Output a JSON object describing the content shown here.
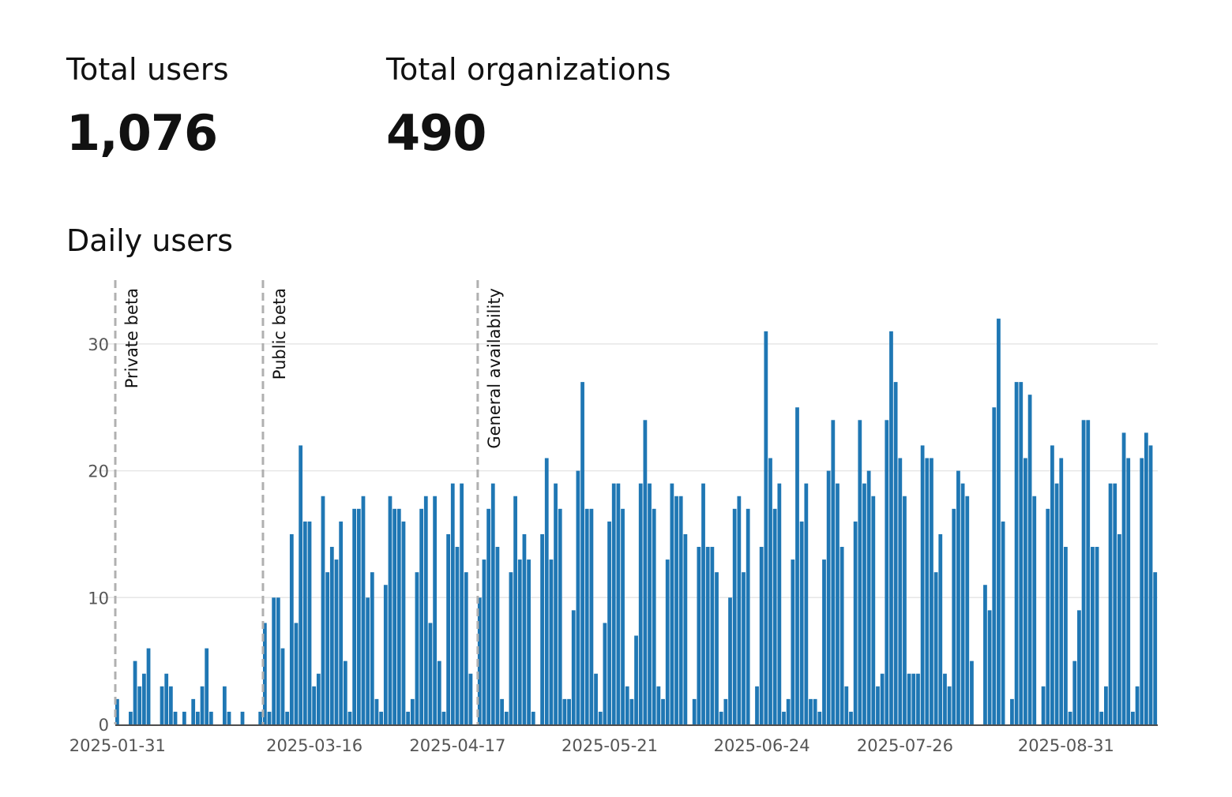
{
  "stats": {
    "users": {
      "label": "Total users",
      "value": "1,076"
    },
    "organizations": {
      "label": "Total organizations",
      "value": "490"
    }
  },
  "chart_data": {
    "type": "bar",
    "title": "Daily users",
    "xlabel": "",
    "ylabel": "",
    "ylim": [
      0,
      35
    ],
    "yticks": [
      0,
      10,
      20,
      30
    ],
    "grid": true,
    "bar_color": "#1f77b4",
    "grid_color": "#e6e6e6",
    "annotation_color": "#b0b0b0",
    "start_date": "2025-01-31",
    "x_tick_labels": [
      {
        "label": "2025-01-31",
        "index": 0
      },
      {
        "label": "2025-03-16",
        "index": 44
      },
      {
        "label": "2025-04-17",
        "index": 76
      },
      {
        "label": "2025-05-21",
        "index": 110
      },
      {
        "label": "2025-06-24",
        "index": 144
      },
      {
        "label": "2025-07-26",
        "index": 176
      },
      {
        "label": "2025-08-31",
        "index": 212
      }
    ],
    "annotations": [
      {
        "label": "Private beta",
        "index": 0
      },
      {
        "label": "Public beta",
        "index": 33
      },
      {
        "label": "General availability",
        "index": 81
      }
    ],
    "values": [
      2,
      0,
      0,
      1,
      5,
      3,
      4,
      6,
      0,
      0,
      3,
      4,
      3,
      1,
      0,
      1,
      0,
      2,
      1,
      3,
      6,
      1,
      0,
      0,
      3,
      1,
      0,
      0,
      1,
      0,
      0,
      0,
      1,
      8,
      1,
      10,
      10,
      6,
      1,
      15,
      8,
      22,
      16,
      16,
      3,
      4,
      18,
      12,
      14,
      13,
      16,
      5,
      1,
      17,
      17,
      18,
      10,
      12,
      2,
      1,
      11,
      18,
      17,
      17,
      16,
      1,
      2,
      12,
      17,
      18,
      8,
      18,
      5,
      1,
      15,
      19,
      14,
      19,
      12,
      4,
      0,
      10,
      13,
      17,
      19,
      14,
      2,
      1,
      12,
      18,
      13,
      15,
      13,
      1,
      0,
      15,
      21,
      13,
      19,
      17,
      2,
      2,
      9,
      20,
      27,
      17,
      17,
      4,
      1,
      8,
      16,
      19,
      19,
      17,
      3,
      2,
      7,
      19,
      24,
      19,
      17,
      3,
      2,
      13,
      19,
      18,
      18,
      15,
      0,
      2,
      14,
      19,
      14,
      14,
      12,
      1,
      2,
      10,
      17,
      18,
      12,
      17,
      0,
      3,
      14,
      31,
      21,
      17,
      19,
      1,
      2,
      13,
      25,
      16,
      19,
      2,
      2,
      1,
      13,
      20,
      24,
      19,
      14,
      3,
      1,
      16,
      24,
      19,
      20,
      18,
      3,
      4,
      24,
      31,
      27,
      21,
      18,
      4,
      4,
      4,
      22,
      21,
      21,
      12,
      15,
      4,
      3,
      17,
      20,
      19,
      18,
      5,
      0,
      0,
      11,
      9,
      25,
      32,
      16,
      0,
      2,
      27,
      27,
      21,
      26,
      18,
      0,
      3,
      17,
      22,
      19,
      21,
      14,
      1,
      5,
      9,
      24,
      24,
      14,
      14,
      1,
      3,
      19,
      19,
      15,
      23,
      21,
      1,
      3,
      21,
      23,
      22,
      12
    ]
  }
}
